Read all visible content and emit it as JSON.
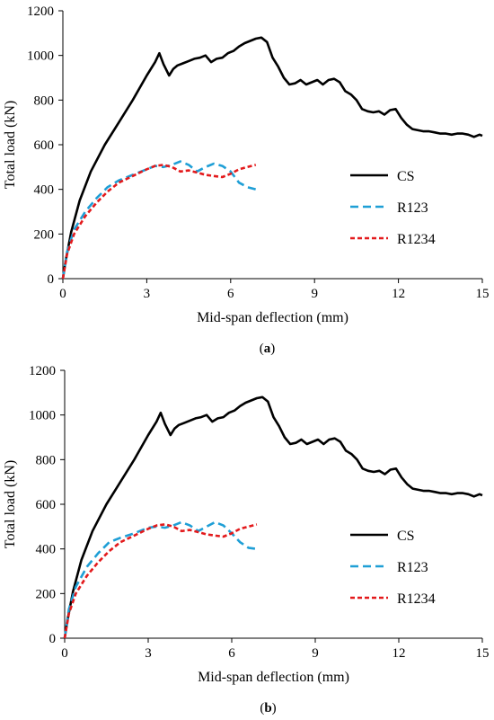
{
  "captions": [
    "(a)",
    "(b)"
  ],
  "colors": {
    "CS": "#000000",
    "R123": "#1f9fd6",
    "R1234": "#e31a1c"
  },
  "chart_data": [
    {
      "type": "line",
      "caption": "(a)",
      "xlabel": "Mid-span deflection (mm)",
      "ylabel": "Total load (kN)",
      "xlim": [
        0,
        15
      ],
      "ylim": [
        0,
        1200
      ],
      "xticks": [
        0,
        3,
        6,
        9,
        12,
        15
      ],
      "yticks": [
        0,
        200,
        400,
        600,
        800,
        1000,
        1200
      ],
      "legend_position": "right",
      "grid": false,
      "series": [
        {
          "name": "CS",
          "x": [
            0,
            0.1,
            0.3,
            0.6,
            1.0,
            1.5,
            2.0,
            2.5,
            3.0,
            3.3,
            3.45,
            3.6,
            3.8,
            3.95,
            4.1,
            4.3,
            4.5,
            4.7,
            4.9,
            5.1,
            5.3,
            5.5,
            5.7,
            5.9,
            6.1,
            6.3,
            6.5,
            6.7,
            6.9,
            7.1,
            7.3,
            7.5,
            7.7,
            7.9,
            8.1,
            8.3,
            8.5,
            8.7,
            8.9,
            9.1,
            9.3,
            9.5,
            9.7,
            9.9,
            10.1,
            10.3,
            10.5,
            10.7,
            10.9,
            11.1,
            11.3,
            11.5,
            11.7,
            11.9,
            12.1,
            12.3,
            12.5,
            12.7,
            12.9,
            13.1,
            13.3,
            13.5,
            13.7,
            13.9,
            14.1,
            14.3,
            14.5,
            14.7,
            14.9,
            15.0
          ],
          "y": [
            0,
            80,
            210,
            350,
            480,
            600,
            700,
            800,
            910,
            970,
            1010,
            960,
            910,
            940,
            955,
            965,
            975,
            985,
            990,
            1000,
            970,
            985,
            990,
            1010,
            1020,
            1040,
            1055,
            1065,
            1075,
            1080,
            1060,
            990,
            950,
            900,
            870,
            875,
            890,
            870,
            880,
            890,
            870,
            890,
            895,
            880,
            840,
            825,
            800,
            760,
            750,
            745,
            750,
            735,
            755,
            760,
            720,
            690,
            670,
            665,
            660,
            660,
            655,
            650,
            650,
            645,
            650,
            650,
            645,
            635,
            645,
            640
          ]
        },
        {
          "name": "R123",
          "x": [
            0,
            0.15,
            0.4,
            0.8,
            1.2,
            1.6,
            2.0,
            2.5,
            3.0,
            3.3,
            3.6,
            3.9,
            4.2,
            4.5,
            4.8,
            5.1,
            5.4,
            5.7,
            6.0,
            6.3,
            6.6,
            6.9
          ],
          "y": [
            0,
            120,
            220,
            300,
            360,
            410,
            440,
            465,
            490,
            505,
            500,
            510,
            525,
            510,
            480,
            500,
            515,
            505,
            480,
            430,
            410,
            400
          ]
        },
        {
          "name": "R1234",
          "x": [
            0,
            0.15,
            0.4,
            0.8,
            1.2,
            1.6,
            2.0,
            2.5,
            3.0,
            3.3,
            3.6,
            3.9,
            4.2,
            4.5,
            4.8,
            5.1,
            5.4,
            5.7,
            6.0,
            6.3,
            6.6,
            6.9
          ],
          "y": [
            0,
            110,
            200,
            280,
            340,
            390,
            430,
            460,
            490,
            505,
            510,
            500,
            480,
            485,
            475,
            465,
            460,
            455,
            470,
            490,
            500,
            510
          ]
        }
      ]
    },
    {
      "type": "line",
      "caption": "(b)",
      "xlabel": "Mid-span deflection (mm)",
      "ylabel": "Total load (kN)",
      "xlim": [
        0,
        15
      ],
      "ylim": [
        0,
        1200
      ],
      "xticks": [
        0,
        3,
        6,
        9,
        12,
        15
      ],
      "yticks": [
        0,
        200,
        400,
        600,
        800,
        1000,
        1200
      ],
      "legend_position": "right",
      "grid": false,
      "series": [
        {
          "name": "CS",
          "x": [
            0,
            0.1,
            0.3,
            0.6,
            1.0,
            1.5,
            2.0,
            2.5,
            3.0,
            3.3,
            3.45,
            3.6,
            3.8,
            3.95,
            4.1,
            4.3,
            4.5,
            4.7,
            4.9,
            5.1,
            5.3,
            5.5,
            5.7,
            5.9,
            6.1,
            6.3,
            6.5,
            6.7,
            6.9,
            7.1,
            7.3,
            7.5,
            7.7,
            7.9,
            8.1,
            8.3,
            8.5,
            8.7,
            8.9,
            9.1,
            9.3,
            9.5,
            9.7,
            9.9,
            10.1,
            10.3,
            10.5,
            10.7,
            10.9,
            11.1,
            11.3,
            11.5,
            11.7,
            11.9,
            12.1,
            12.3,
            12.5,
            12.7,
            12.9,
            13.1,
            13.3,
            13.5,
            13.7,
            13.9,
            14.1,
            14.3,
            14.5,
            14.7,
            14.9,
            15.0
          ],
          "y": [
            0,
            80,
            210,
            350,
            480,
            600,
            700,
            800,
            910,
            970,
            1010,
            960,
            910,
            940,
            955,
            965,
            975,
            985,
            990,
            1000,
            970,
            985,
            990,
            1010,
            1020,
            1040,
            1055,
            1065,
            1075,
            1080,
            1060,
            990,
            950,
            900,
            870,
            875,
            890,
            870,
            880,
            890,
            870,
            890,
            895,
            880,
            840,
            825,
            800,
            760,
            750,
            745,
            750,
            735,
            755,
            760,
            720,
            690,
            670,
            665,
            660,
            660,
            655,
            650,
            650,
            645,
            650,
            650,
            645,
            635,
            645,
            640
          ]
        },
        {
          "name": "R123",
          "x": [
            0,
            0.15,
            0.4,
            0.8,
            1.2,
            1.6,
            2.0,
            2.5,
            3.0,
            3.3,
            3.6,
            3.9,
            4.2,
            4.5,
            4.8,
            5.1,
            5.4,
            5.7,
            6.0,
            6.3,
            6.6,
            6.9
          ],
          "y": [
            0,
            130,
            230,
            320,
            380,
            430,
            450,
            470,
            495,
            500,
            495,
            505,
            520,
            505,
            480,
            500,
            520,
            505,
            470,
            430,
            405,
            400
          ]
        },
        {
          "name": "R1234",
          "x": [
            0,
            0.15,
            0.4,
            0.8,
            1.2,
            1.6,
            2.0,
            2.5,
            3.0,
            3.3,
            3.6,
            3.9,
            4.2,
            4.5,
            4.8,
            5.1,
            5.4,
            5.7,
            6.0,
            6.3,
            6.6,
            6.9
          ],
          "y": [
            0,
            110,
            200,
            280,
            340,
            390,
            430,
            460,
            490,
            505,
            510,
            500,
            480,
            485,
            475,
            465,
            460,
            455,
            470,
            490,
            500,
            510
          ]
        }
      ]
    }
  ]
}
